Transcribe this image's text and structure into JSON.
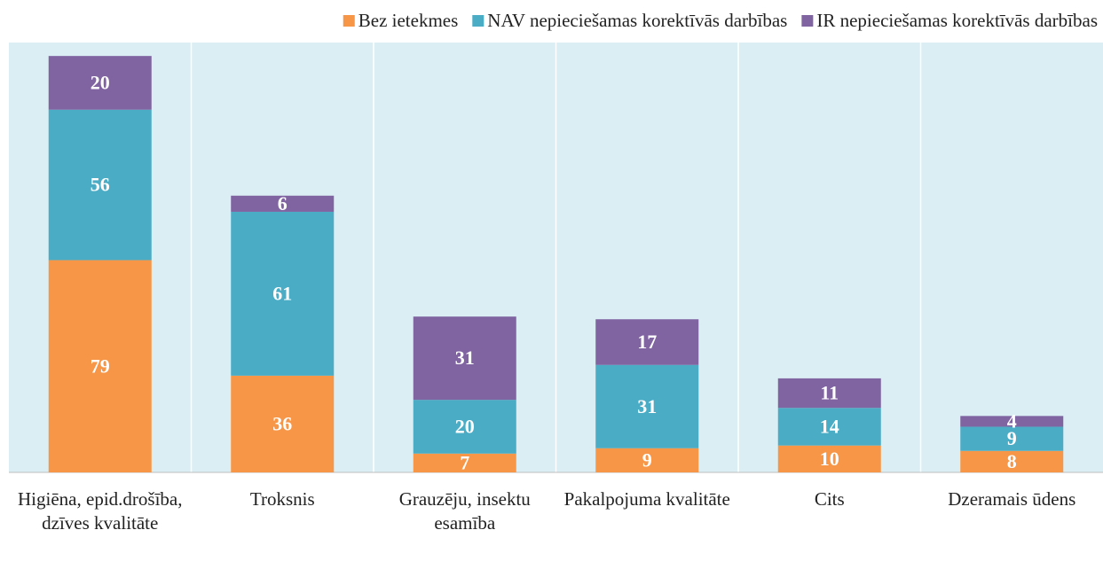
{
  "chart_data": {
    "type": "stacked_bar",
    "categories": [
      "Higiēna, epid.drošība, dzīves kvalitāte",
      "Troksnis",
      "Grauzēju, insektu esamība",
      "Pakalpojuma kvalitāte",
      "Cits",
      "Dzeramais ūdens"
    ],
    "series": [
      {
        "name": "Bez ietekmes",
        "color": "#f79646",
        "values": [
          79,
          36,
          7,
          9,
          10,
          8
        ]
      },
      {
        "name": "NAV nepieciešamas korektīvās darbības",
        "color": "#4bacc6",
        "values": [
          56,
          61,
          20,
          31,
          14,
          9
        ]
      },
      {
        "name": "IR nepieciešamas korektīvās darbības",
        "color": "#8064a2",
        "values": [
          20,
          6,
          31,
          17,
          11,
          4
        ]
      }
    ],
    "ylim": [
      0,
      160
    ],
    "legend": "top-right"
  }
}
